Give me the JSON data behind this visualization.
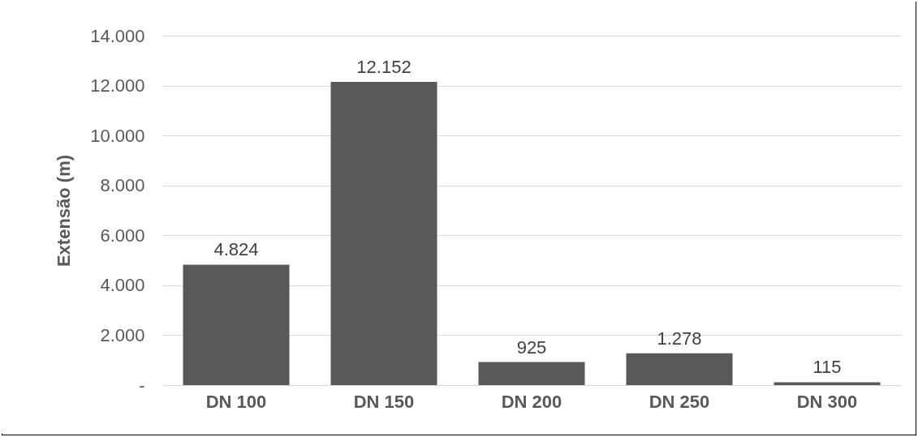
{
  "chart_data": {
    "type": "bar",
    "ylabel": "Extensão (m)",
    "categories": [
      "DN 100",
      "DN 150",
      "DN 200",
      "DN 250",
      "DN 300"
    ],
    "values": [
      4824,
      12152,
      925,
      1278,
      115
    ],
    "value_labels": [
      "4.824",
      "12.152",
      "925",
      "1.278",
      "115"
    ],
    "color": "#595959",
    "ylim": [
      0,
      14000
    ],
    "yticks": [
      {
        "value": 0,
        "label": "-"
      },
      {
        "value": 2000,
        "label": "2.000"
      },
      {
        "value": 4000,
        "label": "4.000"
      },
      {
        "value": 6000,
        "label": "6.000"
      },
      {
        "value": 8000,
        "label": "8.000"
      },
      {
        "value": 10000,
        "label": "10.000"
      },
      {
        "value": 12000,
        "label": "12.000"
      },
      {
        "value": 14000,
        "label": "14.000"
      }
    ],
    "grid": "y"
  }
}
